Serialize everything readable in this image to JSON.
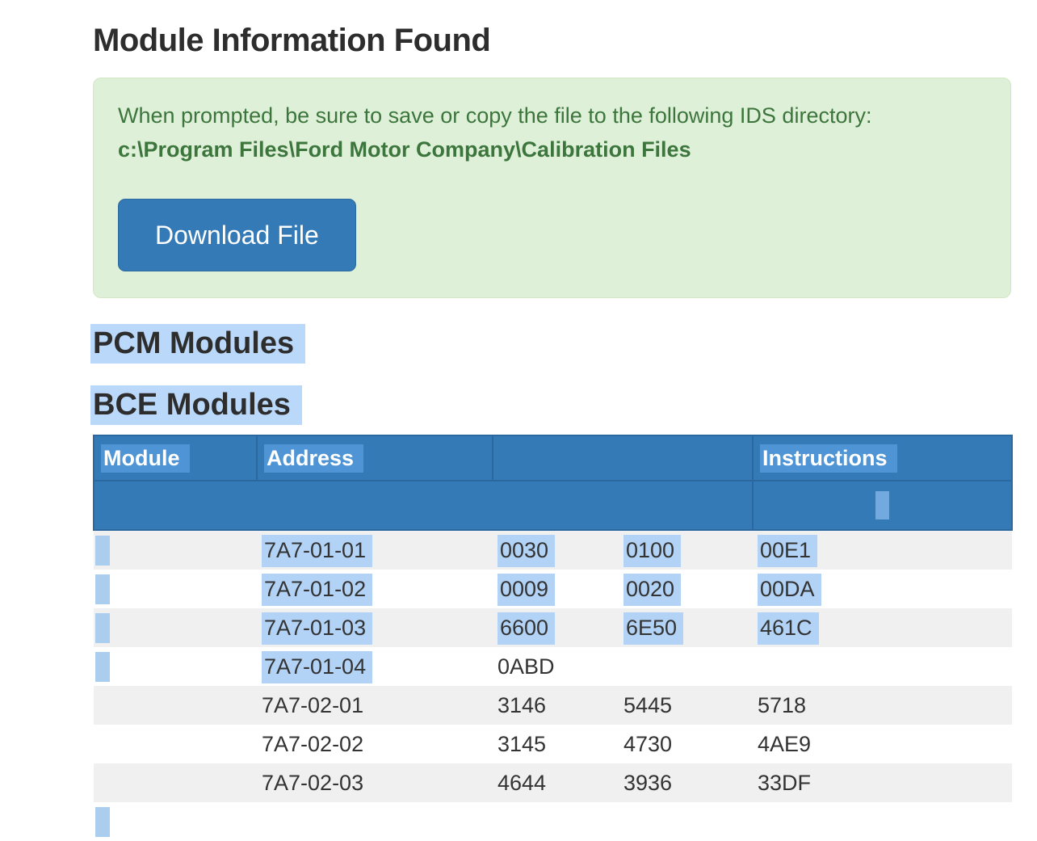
{
  "page": {
    "title": "Module Information Found"
  },
  "alert": {
    "line1": "When prompted, be sure to save or copy the file to the following IDS directory:",
    "path": "c:\\Program Files\\Ford Motor Company\\Calibration Files",
    "button_label": "Download File",
    "bg_color": "#dff0d8",
    "text_color": "#3c763d",
    "button_color": "#337ab7"
  },
  "sections": {
    "pcm_heading": "PCM Modules",
    "bce_heading": "BCE Modules"
  },
  "table": {
    "header": {
      "module": "Module",
      "address": "Address",
      "blank": "",
      "instructions": "Instructions"
    },
    "rows": [
      {
        "module_selected": true,
        "cells": [
          {
            "v": "7A7-01-01",
            "hl": true
          },
          {
            "v": "0030",
            "hl": true
          },
          {
            "v": "0100",
            "hl": true
          },
          {
            "v": "00E1",
            "hl": true
          }
        ]
      },
      {
        "module_selected": true,
        "cells": [
          {
            "v": "7A7-01-02",
            "hl": true
          },
          {
            "v": "0009",
            "hl": true
          },
          {
            "v": "0020",
            "hl": true
          },
          {
            "v": "00DA",
            "hl": true
          }
        ]
      },
      {
        "module_selected": true,
        "cells": [
          {
            "v": "7A7-01-03",
            "hl": true
          },
          {
            "v": "6600",
            "hl": true
          },
          {
            "v": "6E50",
            "hl": true
          },
          {
            "v": "461C",
            "hl": true
          }
        ]
      },
      {
        "module_selected": true,
        "cells": [
          {
            "v": "7A7-01-04",
            "hl": true
          },
          {
            "v": "0ABD",
            "hl": false
          },
          {
            "v": "",
            "hl": false
          },
          {
            "v": "",
            "hl": false
          }
        ]
      },
      {
        "module_selected": false,
        "cells": [
          {
            "v": "7A7-02-01",
            "hl": false
          },
          {
            "v": "3146",
            "hl": false
          },
          {
            "v": "5445",
            "hl": false
          },
          {
            "v": "5718",
            "hl": false
          }
        ]
      },
      {
        "module_selected": false,
        "cells": [
          {
            "v": "7A7-02-02",
            "hl": false
          },
          {
            "v": "3145",
            "hl": false
          },
          {
            "v": "4730",
            "hl": false
          },
          {
            "v": "4AE9",
            "hl": false
          }
        ]
      },
      {
        "module_selected": false,
        "cells": [
          {
            "v": "7A7-02-03",
            "hl": false
          },
          {
            "v": "4644",
            "hl": false
          },
          {
            "v": "3936",
            "hl": false
          },
          {
            "v": "33DF",
            "hl": false
          }
        ]
      },
      {
        "module_selected": true,
        "cells": [
          {
            "v": "",
            "hl": false
          },
          {
            "v": "",
            "hl": false
          },
          {
            "v": "",
            "hl": false
          },
          {
            "v": "",
            "hl": false
          }
        ]
      }
    ]
  },
  "colors": {
    "table_header_bg": "#337ab7",
    "table_header_border": "#2b689f",
    "selection_highlight_light": "#b2d3f6",
    "selection_highlight_on_header": "#4f94d4",
    "row_stripe": "#f0f0f0",
    "success_green_text": "#3c763d",
    "success_green_bg": "#dff0d8"
  }
}
